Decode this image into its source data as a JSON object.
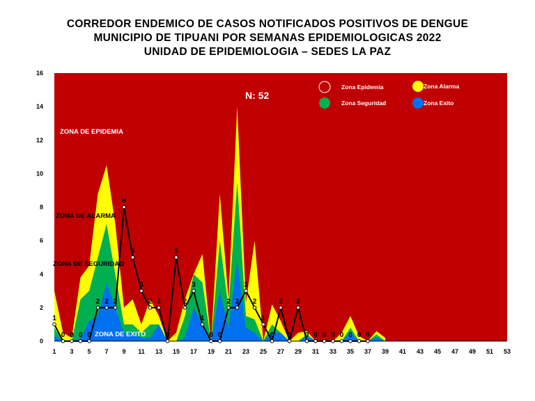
{
  "title_lines": [
    "CORREDOR ENDEMICO DE CASOS NOTIFICADOS POSITIVOS DE DENGUE",
    "MUNICIPIO DE TIPUANI  POR SEMANAS EPIDEMIOLOGICAS 2022",
    "UNIDAD DE EPIDEMIOLOGIA – SEDES LA PAZ"
  ],
  "annotation_n": "N: 52",
  "zone_labels": {
    "epidemia": "ZONA DE EPIDEMIA",
    "alarma": "ZONA DE ALARMA",
    "seguridad": "ZONA DE  SEGURIDAD",
    "exito": "ZONA DE  EXITO"
  },
  "legend": [
    {
      "label": "Zona Epidemia",
      "color": "#c00000"
    },
    {
      "label": "Zona Alarma",
      "color": "#ffff00"
    },
    {
      "label": "Zona Seguridad",
      "color": "#00b050"
    },
    {
      "label": "Zona Exito",
      "color": "#0070f0"
    }
  ],
  "chart_data": {
    "type": "area",
    "title": "CORREDOR ENDEMICO DE CASOS NOTIFICADOS POSITIVOS DE DENGUE MUNICIPIO DE TIPUANI  POR SEMANAS EPIDEMIOLOGICAS 2022",
    "xlabel": "",
    "ylabel": "",
    "ylim": [
      0,
      16
    ],
    "yticks": [
      0,
      2,
      4,
      6,
      8,
      10,
      12,
      14,
      16
    ],
    "xlim": [
      1,
      53
    ],
    "xticks": [
      1,
      3,
      5,
      7,
      9,
      11,
      13,
      15,
      17,
      19,
      21,
      23,
      25,
      27,
      29,
      31,
      33,
      35,
      37,
      39,
      41,
      43,
      45,
      47,
      49,
      51,
      53
    ],
    "x": [
      1,
      2,
      3,
      4,
      5,
      6,
      7,
      8,
      9,
      10,
      11,
      12,
      13,
      14,
      15,
      16,
      17,
      18,
      19,
      20,
      21,
      22,
      23,
      24,
      25,
      26,
      27,
      28,
      29,
      30,
      31,
      32,
      33,
      34,
      35,
      36,
      37,
      38,
      39
    ],
    "zones": {
      "exito": [
        0.3,
        0,
        0,
        0.2,
        1.2,
        1.5,
        3.5,
        2,
        0.5,
        0.5,
        0.2,
        0.2,
        1,
        0,
        0,
        0.2,
        2,
        1,
        0,
        3,
        0.8,
        4.8,
        0.8,
        0.5,
        0,
        0.5,
        0.5,
        0,
        0,
        0.3,
        0,
        0,
        0,
        0,
        0.5,
        0,
        0,
        0.2,
        0
      ],
      "seguridad": [
        0.8,
        0,
        0,
        2.5,
        3,
        5,
        7,
        4,
        1,
        1,
        0.5,
        1,
        1,
        0,
        0,
        1.5,
        4,
        3.5,
        0,
        6,
        2,
        9.5,
        1.5,
        1.3,
        0,
        1,
        0.5,
        0,
        0,
        0.4,
        0,
        0,
        0,
        0,
        0.8,
        0,
        0,
        0.4,
        0
      ],
      "alarma": [
        3,
        0.5,
        0.2,
        3.8,
        4.5,
        8.8,
        10.5,
        7,
        2,
        2.5,
        1,
        2.5,
        1.5,
        0,
        0.5,
        2.5,
        4,
        5.2,
        0,
        8.8,
        2.5,
        14,
        2.3,
        6,
        0,
        2.2,
        1.2,
        0,
        0.5,
        0.6,
        0,
        0,
        0,
        0.5,
        1.5,
        0.3,
        0,
        0.6,
        0.2
      ]
    },
    "series": [
      {
        "name": "",
        "x": [
          1,
          2,
          3,
          4,
          5,
          6,
          7,
          8,
          9,
          10,
          11,
          12,
          13,
          14,
          15,
          16,
          17,
          18,
          19,
          20,
          21,
          22,
          23,
          24,
          25,
          26,
          27,
          28,
          29,
          30,
          31,
          32,
          33,
          34,
          35,
          36,
          37
        ],
        "values": [
          1,
          0,
          0,
          0,
          0,
          2,
          2,
          2,
          8,
          5,
          3,
          2,
          2,
          0,
          5,
          2,
          3,
          1,
          0,
          0,
          2,
          2,
          3,
          2,
          1,
          0,
          2,
          0,
          2,
          0,
          0,
          0,
          0,
          0,
          0,
          0,
          0
        ],
        "data_labels": [
          "1",
          "0",
          "0",
          "0",
          "0",
          "2",
          "2",
          "2",
          "8",
          "5",
          "3",
          "2",
          "2",
          "0",
          "5",
          "2",
          "3",
          "1",
          "0",
          "0",
          "2",
          "2",
          "3",
          "2",
          "1",
          "0",
          "2",
          "0",
          "2",
          "0",
          "0",
          "0",
          "0",
          "0",
          "0",
          "0",
          "0"
        ]
      }
    ]
  }
}
